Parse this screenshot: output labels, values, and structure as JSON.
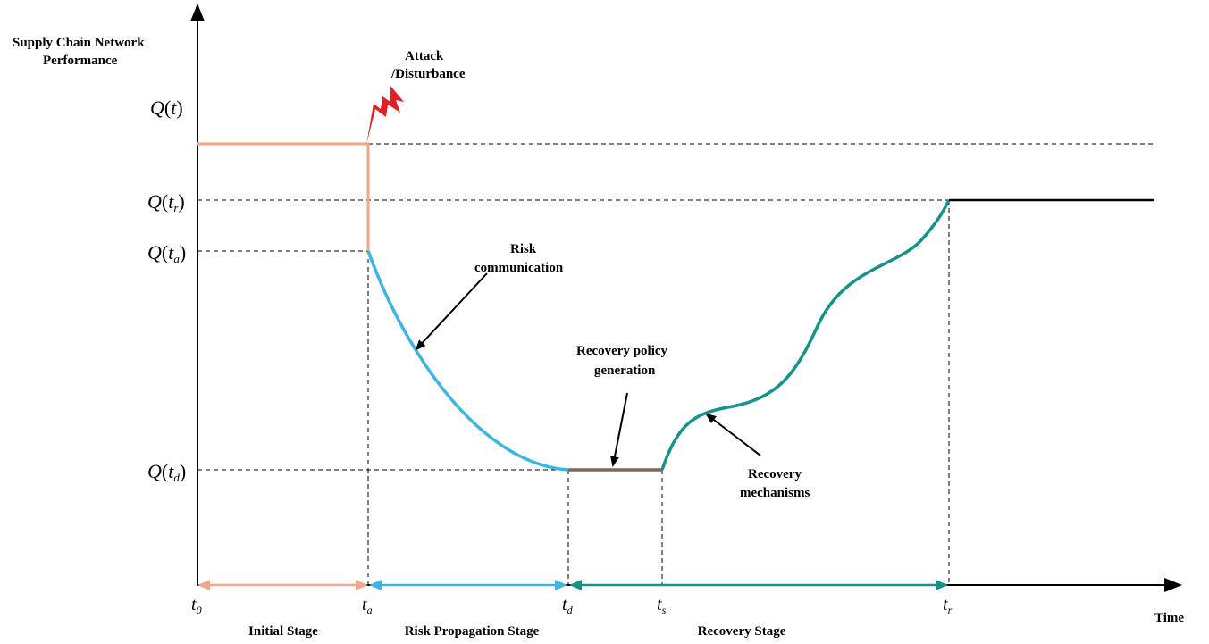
{
  "axes": {
    "y_label_line1": "Supply Chain Network",
    "y_label_line2": "Performance",
    "x_label": "Time"
  },
  "y_levels": [
    {
      "key": "q_t",
      "fn": "Q",
      "arg": "t",
      "sub": ""
    },
    {
      "key": "q_tr",
      "fn": "Q",
      "arg": "t",
      "sub": "r"
    },
    {
      "key": "q_ta",
      "fn": "Q",
      "arg": "t",
      "sub": "a"
    },
    {
      "key": "q_td",
      "fn": "Q",
      "arg": "t",
      "sub": "d"
    }
  ],
  "x_ticks": [
    {
      "key": "t0",
      "base": "t",
      "sub": "0"
    },
    {
      "key": "ta",
      "base": "t",
      "sub": "a"
    },
    {
      "key": "td",
      "base": "t",
      "sub": "d"
    },
    {
      "key": "ts",
      "base": "t",
      "sub": "s"
    },
    {
      "key": "tr",
      "base": "t",
      "sub": "r"
    }
  ],
  "stages": {
    "initial": "Initial Stage",
    "risk_propagation": "Risk Propagation Stage",
    "recovery": "Recovery Stage"
  },
  "annotations": {
    "attack_line1": "Attack",
    "attack_line2": "/Disturbance",
    "risk_comm_line1": "Risk",
    "risk_comm_line2": "communication",
    "policy_line1": "Recovery policy",
    "policy_line2": "generation",
    "mechanisms_line1": "Recovery",
    "mechanisms_line2": "mechanisms"
  },
  "colors": {
    "initial": "#f4a688",
    "propagation": "#3db5e0",
    "policy": "#7a6a58",
    "recovery": "#15938a",
    "final": "#000000",
    "attack_bolt": "#e31e24"
  }
}
